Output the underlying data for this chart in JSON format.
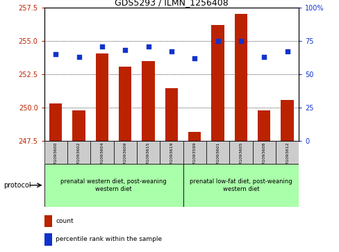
{
  "title": "GDS5293 / ILMN_1256408",
  "samples": [
    "GSM1093600",
    "GSM1093602",
    "GSM1093604",
    "GSM1093609",
    "GSM1093615",
    "GSM1093619",
    "GSM1093599",
    "GSM1093601",
    "GSM1093605",
    "GSM1093608",
    "GSM1093612"
  ],
  "counts": [
    250.3,
    249.8,
    254.05,
    253.1,
    253.5,
    251.45,
    248.2,
    256.2,
    257.05,
    249.8,
    250.6
  ],
  "percentiles": [
    65,
    63,
    71,
    68,
    71,
    67,
    62,
    75,
    75,
    63,
    67
  ],
  "ylim_left": [
    247.5,
    257.5
  ],
  "ylim_right": [
    0,
    100
  ],
  "yticks_left": [
    247.5,
    250.0,
    252.5,
    255.0,
    257.5
  ],
  "yticks_right": [
    0,
    25,
    50,
    75,
    100
  ],
  "bar_color": "#BB2200",
  "dot_color": "#1133CC",
  "bar_width": 0.55,
  "group1_label": "prenatal western diet, post-weaning\nwestern diet",
  "group2_label": "prenatal low-fat diet, post-weaning\nwestern diet",
  "group1_indices": [
    0,
    1,
    2,
    3,
    4,
    5
  ],
  "group2_indices": [
    6,
    7,
    8,
    9,
    10
  ],
  "protocol_label": "protocol",
  "legend_count": "count",
  "legend_percentile": "percentile rank within the sample",
  "background_color": "#ffffff",
  "plot_bg": "#ffffff",
  "tick_label_color_left": "#BB2200",
  "tick_label_color_right": "#1133CC",
  "group1_bg": "#aaffaa",
  "group2_bg": "#aaffaa",
  "sample_bg": "#cccccc"
}
